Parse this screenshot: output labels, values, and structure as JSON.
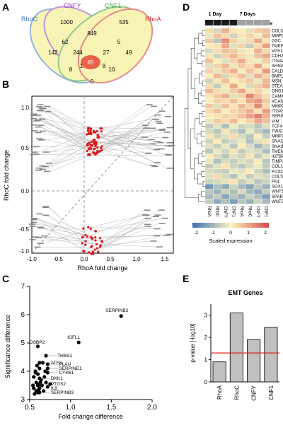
{
  "panel_labels": {
    "a": "A",
    "b": "B",
    "c": "C",
    "d": "D",
    "e": "E"
  },
  "venn": {
    "sets": [
      {
        "name": "RhoC",
        "color": "#3a78c8"
      },
      {
        "name": "CNFY",
        "color": "#8a3dbf"
      },
      {
        "name": "CNF1",
        "color": "#3c9a3c"
      },
      {
        "name": "RhoA",
        "color": "#d42a2a"
      }
    ],
    "counts": [
      "1000",
      "535",
      "62",
      "849",
      "5",
      "142",
      "244",
      "27",
      "49",
      "85",
      "8",
      "1",
      "8",
      "10",
      "0"
    ]
  },
  "scatter_b": {
    "xlabel": "RhoA fold change",
    "ylabel": "RhoC fold change",
    "xticks": [
      "-1.0",
      "-0.5",
      "0.0",
      "0.5",
      "1.0",
      "1.5"
    ],
    "yticks": [
      "1.0",
      "0.5",
      "0.0",
      "-0.5",
      "-1.0"
    ]
  },
  "chart_data": [
    {
      "type": "scatter",
      "panel": "C",
      "xlabel": "Fold change difference",
      "ylabel": "Significance difference",
      "xlim": [
        0.5,
        2.0
      ],
      "ylim": [
        3,
        7
      ],
      "xticks": [
        "0.5",
        "1.0",
        "1.5",
        "2.0"
      ],
      "yticks": [
        "3",
        "4",
        "5",
        "6",
        "7"
      ],
      "labeled_points": [
        {
          "label": "SERPINB2",
          "x": 1.62,
          "y": 5.95
        },
        {
          "label": "IGFL1",
          "x": 1.1,
          "y": 5.02
        },
        {
          "label": "OSBP2",
          "x": 0.6,
          "y": 4.88
        },
        {
          "label": "THBS1",
          "x": 0.7,
          "y": 4.55
        },
        {
          "label": "ATF3",
          "x": 0.62,
          "y": 4.3
        },
        {
          "label": "PLAU",
          "x": 0.72,
          "y": 4.25
        },
        {
          "label": "SERPINE1",
          "x": 0.72,
          "y": 4.1
        },
        {
          "label": "CYR61",
          "x": 0.72,
          "y": 3.95
        },
        {
          "label": "DKK1",
          "x": 0.62,
          "y": 3.75
        },
        {
          "label": "PTGS2",
          "x": 0.62,
          "y": 3.55
        },
        {
          "label": "IL8",
          "x": 0.62,
          "y": 3.4
        },
        {
          "label": "SERPINB3",
          "x": 0.62,
          "y": 3.25
        }
      ],
      "points": [
        [
          0.55,
          3.4
        ],
        [
          0.58,
          3.3
        ],
        [
          0.6,
          3.5
        ],
        [
          0.63,
          3.6
        ],
        [
          0.55,
          3.8
        ],
        [
          0.57,
          4.0
        ],
        [
          0.6,
          3.9
        ],
        [
          0.65,
          3.5
        ],
        [
          0.67,
          3.3
        ],
        [
          0.7,
          3.6
        ],
        [
          0.56,
          3.2
        ],
        [
          0.59,
          4.2
        ],
        [
          0.64,
          3.7
        ],
        [
          0.62,
          4.1
        ],
        [
          0.58,
          3.6
        ],
        [
          0.68,
          3.8
        ],
        [
          0.66,
          4.3
        ],
        [
          0.54,
          3.5
        ],
        [
          0.61,
          3.35
        ],
        [
          0.72,
          3.45
        ],
        [
          0.57,
          3.95
        ],
        [
          0.69,
          4.0
        ],
        [
          0.6,
          3.25
        ],
        [
          0.75,
          3.55
        ]
      ]
    },
    {
      "type": "bar",
      "panel": "E",
      "title": "EMT Genes",
      "ylabel": "p-value [-log10]",
      "categories": [
        "RhoA",
        "RhoC",
        "CNFY",
        "CNF1"
      ],
      "values": [
        0.9,
        3.1,
        1.9,
        2.45
      ],
      "ylim": [
        0,
        3.5
      ],
      "yticks": [
        "0",
        "1",
        "2",
        "3"
      ],
      "threshold": 1.3,
      "bar_color": "#c0c0c0",
      "threshold_color": "#e02020"
    }
  ],
  "heatmap": {
    "col_groups": [
      "1 Day",
      "7 Days"
    ],
    "time_label": "Time",
    "columns": [
      "RhoA",
      "RhoC",
      "CNFY",
      "CNF1",
      "RhoA",
      "RhoC",
      "CNFY",
      "CNF1"
    ],
    "genes": [
      "COL3A1",
      "MMP2",
      "GSC",
      "TMEFF1",
      "VPS13A",
      "CDH2",
      "ITGAV",
      "AHNAK",
      "CALD1",
      "BMP1",
      "MSN",
      "STEAP1",
      "GNG11",
      "CAMK2N1",
      "VCAN",
      "MMP9",
      "ITGA5",
      "SERPINE1",
      "VIM",
      "TCF4",
      "TWIST1",
      "MMP3",
      "SNAI2",
      "SNAI1",
      "TMEM132A",
      "IGFBP4",
      "TIMP1",
      "COL1A2",
      "FOXC2",
      "COL5A2",
      "FN1",
      "SOX10",
      "WNT5A",
      "SPARC",
      "WNT5B"
    ],
    "values": [
      [
        0.3,
        -0.4,
        0.8,
        0.2,
        0.1,
        -0.3,
        0.5,
        0.6
      ],
      [
        -0.2,
        0.6,
        0.3,
        -0.5,
        0.2,
        0.4,
        -0.1,
        0.7
      ],
      [
        0.5,
        -0.7,
        1.2,
        0.4,
        -0.2,
        0.3,
        0.9,
        0.2
      ],
      [
        0.1,
        0.2,
        0.9,
        -0.3,
        0.4,
        -0.6,
        0.3,
        1.0
      ],
      [
        -0.4,
        0.3,
        0.6,
        0.5,
        -0.2,
        0.1,
        0.8,
        0.3
      ],
      [
        0.2,
        -0.5,
        0.4,
        0.7,
        0.3,
        -0.2,
        0.6,
        0.9
      ],
      [
        0.6,
        0.1,
        -0.3,
        0.4,
        0.8,
        0.2,
        -0.1,
        0.5
      ],
      [
        -0.3,
        0.4,
        0.7,
        -0.2,
        0.5,
        0.3,
        0.9,
        0.1
      ],
      [
        0.4,
        -0.2,
        0.5,
        0.8,
        -0.1,
        0.6,
        0.2,
        1.1
      ],
      [
        0.1,
        0.7,
        -0.4,
        0.3,
        0.6,
        -0.3,
        0.8,
        0.4
      ],
      [
        -0.5,
        0.2,
        0.6,
        0.1,
        0.3,
        0.5,
        -0.2,
        0.7
      ],
      [
        0.3,
        -0.6,
        0.2,
        0.9,
        0.1,
        -0.4,
        0.5,
        0.8
      ],
      [
        0.7,
        0.3,
        -0.2,
        0.5,
        0.9,
        0.2,
        0.4,
        -0.1
      ],
      [
        0.2,
        0.5,
        0.8,
        -0.3,
        0.4,
        1.3,
        0.6,
        0.3
      ],
      [
        -0.1,
        0.4,
        0.3,
        0.6,
        0.2,
        0.9,
        1.1,
        0.5
      ],
      [
        0.5,
        -0.3,
        0.6,
        0.2,
        0.7,
        0.4,
        1.2,
        0.3
      ],
      [
        0.3,
        0.6,
        -0.1,
        0.4,
        0.5,
        0.8,
        0.2,
        1.0
      ],
      [
        0.1,
        0.2,
        0.4,
        0.3,
        0.6,
        1.0,
        1.3,
        0.8
      ],
      [
        -0.2,
        0.5,
        0.3,
        0.7,
        0.1,
        0.4,
        0.9,
        0.6
      ],
      [
        -0.6,
        -0.3,
        -0.8,
        -0.2,
        -0.5,
        -0.4,
        -0.7,
        -0.3
      ],
      [
        -0.4,
        -0.7,
        0.2,
        -0.5,
        -0.8,
        -0.2,
        -0.6,
        -0.9
      ],
      [
        0.2,
        -0.5,
        -0.3,
        0.3,
        -0.4,
        -0.7,
        0.1,
        -0.6
      ],
      [
        -0.5,
        0.1,
        -0.6,
        -0.4,
        -0.2,
        -0.8,
        -0.3,
        0.2
      ],
      [
        -0.3,
        -0.6,
        -0.2,
        -0.7,
        0.1,
        -0.4,
        -0.9,
        -0.5
      ],
      [
        -0.7,
        -0.2,
        -0.5,
        0.2,
        -0.6,
        -0.3,
        -0.4,
        -0.8
      ],
      [
        0.1,
        -0.4,
        -0.7,
        -0.3,
        -0.5,
        0.2,
        -0.6,
        -0.2
      ],
      [
        -0.2,
        -0.8,
        -0.4,
        -0.6,
        -0.3,
        -0.5,
        0.1,
        -0.7
      ],
      [
        -0.6,
        -0.3,
        0.2,
        -0.5,
        -0.7,
        -0.4,
        -0.2,
        -0.6
      ],
      [
        -0.4,
        -0.5,
        -0.6,
        -0.2,
        -0.3,
        0.1,
        -0.5,
        -0.8
      ],
      [
        -0.3,
        0.3,
        -0.4,
        -0.7,
        -0.2,
        -0.6,
        -0.3,
        -0.4
      ],
      [
        -0.5,
        -0.4,
        -0.3,
        0.2,
        -0.6,
        -0.3,
        -0.7,
        -0.5
      ],
      [
        -1.4,
        -0.8,
        -1.1,
        -0.5,
        -0.9,
        -1.2,
        -0.6,
        -1.0
      ],
      [
        -0.7,
        -1.0,
        -0.5,
        -0.8,
        -0.4,
        -0.9,
        -1.1,
        -0.6
      ],
      [
        -0.9,
        -0.6,
        -1.2,
        -0.7,
        -1.0,
        -0.5,
        -0.8,
        -1.3
      ],
      [
        -0.6,
        -1.1,
        -0.8,
        -1.3,
        -0.7,
        -1.0,
        -0.5,
        -0.9
      ]
    ],
    "legend_title": "Scaled expression",
    "legend_ticks": [
      "-2",
      "-1",
      "0",
      "1",
      "2"
    ],
    "low_color": "#3b6fb6",
    "mid_color": "#fdf5c0",
    "high_color": "#d6494a"
  }
}
